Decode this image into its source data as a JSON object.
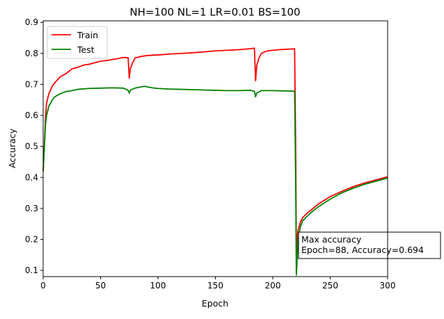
{
  "chart_data": {
    "type": "line",
    "title": "NH=100 NL=1 LR=0.01 BS=100",
    "xlabel": "Epoch",
    "ylabel": "Accuracy",
    "xlim": [
      0,
      300
    ],
    "ylim": [
      0.08,
      0.905
    ],
    "xticks": [
      0,
      50,
      100,
      150,
      200,
      250,
      300
    ],
    "yticks": [
      0.1,
      0.2,
      0.3,
      0.4,
      0.5,
      0.6,
      0.7,
      0.8,
      0.9
    ],
    "grid": false,
    "legend_position": "upper left",
    "series": [
      {
        "name": "Train",
        "color": "#ff0000",
        "points": [
          [
            0,
            0.42
          ],
          [
            1,
            0.5
          ],
          [
            2,
            0.59
          ],
          [
            3,
            0.64
          ],
          [
            5,
            0.67
          ],
          [
            8,
            0.695
          ],
          [
            10,
            0.705
          ],
          [
            15,
            0.725
          ],
          [
            20,
            0.735
          ],
          [
            25,
            0.75
          ],
          [
            30,
            0.755
          ],
          [
            35,
            0.762
          ],
          [
            40,
            0.765
          ],
          [
            45,
            0.77
          ],
          [
            50,
            0.775
          ],
          [
            55,
            0.777
          ],
          [
            60,
            0.78
          ],
          [
            65,
            0.783
          ],
          [
            70,
            0.787
          ],
          [
            74,
            0.786
          ],
          [
            75,
            0.72
          ],
          [
            76,
            0.752
          ],
          [
            78,
            0.77
          ],
          [
            80,
            0.785
          ],
          [
            85,
            0.79
          ],
          [
            90,
            0.793
          ],
          [
            100,
            0.795
          ],
          [
            110,
            0.798
          ],
          [
            120,
            0.8
          ],
          [
            130,
            0.802
          ],
          [
            140,
            0.805
          ],
          [
            150,
            0.808
          ],
          [
            160,
            0.81
          ],
          [
            170,
            0.812
          ],
          [
            180,
            0.815
          ],
          [
            184,
            0.817
          ],
          [
            185,
            0.712
          ],
          [
            186,
            0.76
          ],
          [
            188,
            0.785
          ],
          [
            190,
            0.8
          ],
          [
            195,
            0.808
          ],
          [
            200,
            0.81
          ],
          [
            205,
            0.812
          ],
          [
            210,
            0.813
          ],
          [
            215,
            0.814
          ],
          [
            219,
            0.815
          ],
          [
            220,
            0.46
          ],
          [
            220.5,
            0.15
          ],
          [
            221,
            0.2
          ],
          [
            222,
            0.23
          ],
          [
            224,
            0.255
          ],
          [
            226,
            0.27
          ],
          [
            230,
            0.285
          ],
          [
            235,
            0.3
          ],
          [
            240,
            0.315
          ],
          [
            250,
            0.338
          ],
          [
            260,
            0.355
          ],
          [
            270,
            0.37
          ],
          [
            280,
            0.382
          ],
          [
            290,
            0.392
          ],
          [
            300,
            0.402
          ]
        ]
      },
      {
        "name": "Test",
        "color": "#008000",
        "points": [
          [
            0,
            0.42
          ],
          [
            1,
            0.49
          ],
          [
            2,
            0.57
          ],
          [
            3,
            0.6
          ],
          [
            5,
            0.63
          ],
          [
            8,
            0.65
          ],
          [
            10,
            0.66
          ],
          [
            15,
            0.67
          ],
          [
            20,
            0.677
          ],
          [
            25,
            0.68
          ],
          [
            30,
            0.684
          ],
          [
            40,
            0.687
          ],
          [
            50,
            0.688
          ],
          [
            60,
            0.689
          ],
          [
            70,
            0.688
          ],
          [
            74,
            0.681
          ],
          [
            75,
            0.672
          ],
          [
            76,
            0.682
          ],
          [
            80,
            0.688
          ],
          [
            88,
            0.694
          ],
          [
            95,
            0.689
          ],
          [
            100,
            0.687
          ],
          [
            110,
            0.685
          ],
          [
            120,
            0.684
          ],
          [
            130,
            0.683
          ],
          [
            140,
            0.682
          ],
          [
            150,
            0.681
          ],
          [
            160,
            0.68
          ],
          [
            170,
            0.68
          ],
          [
            180,
            0.681
          ],
          [
            184,
            0.678
          ],
          [
            185,
            0.66
          ],
          [
            186,
            0.672
          ],
          [
            190,
            0.68
          ],
          [
            200,
            0.68
          ],
          [
            210,
            0.679
          ],
          [
            219,
            0.678
          ],
          [
            220,
            0.36
          ],
          [
            220.5,
            0.085
          ],
          [
            221,
            0.12
          ],
          [
            222,
            0.2
          ],
          [
            224,
            0.24
          ],
          [
            226,
            0.26
          ],
          [
            230,
            0.275
          ],
          [
            235,
            0.292
          ],
          [
            240,
            0.306
          ],
          [
            250,
            0.33
          ],
          [
            260,
            0.35
          ],
          [
            270,
            0.365
          ],
          [
            280,
            0.378
          ],
          [
            290,
            0.388
          ],
          [
            300,
            0.398
          ]
        ]
      }
    ],
    "annotation": {
      "line1": "Max accuracy",
      "line2": "Epoch=88, Accuracy=0.694"
    }
  }
}
